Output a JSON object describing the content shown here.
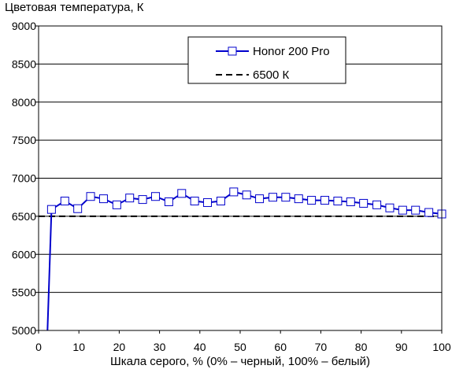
{
  "chart_data": {
    "type": "line",
    "title": "Цветовая температура, К",
    "xlabel": "Шкала серого, % (0% – черный, 100% – белый)",
    "ylabel": "",
    "xlim": [
      0,
      100
    ],
    "ylim": [
      5000,
      9000
    ],
    "x_ticks": [
      "0",
      "10",
      "20",
      "30",
      "40",
      "50",
      "60",
      "70",
      "80",
      "90",
      "100"
    ],
    "y_ticks": [
      "5000",
      "5500",
      "6000",
      "6500",
      "7000",
      "7500",
      "8000",
      "8500",
      "9000"
    ],
    "grid": true,
    "legend_position": "top-right",
    "series": [
      {
        "name": "Honor 200 Pro",
        "style": "solid-with-square-markers",
        "color": "#0000cc",
        "x": [
          2.2,
          3.2,
          6.5,
          9.7,
          12.9,
          16.1,
          19.4,
          22.6,
          25.8,
          29.0,
          32.3,
          35.5,
          38.7,
          41.9,
          45.2,
          48.4,
          51.6,
          54.8,
          58.1,
          61.3,
          64.5,
          67.7,
          71.0,
          74.2,
          77.4,
          80.6,
          83.9,
          87.1,
          90.3,
          93.5,
          96.8,
          100
        ],
        "values": [
          5000,
          6590,
          6700,
          6600,
          6760,
          6730,
          6650,
          6740,
          6720,
          6760,
          6690,
          6800,
          6700,
          6680,
          6700,
          6820,
          6780,
          6730,
          6750,
          6750,
          6730,
          6710,
          6710,
          6700,
          6690,
          6670,
          6650,
          6610,
          6580,
          6580,
          6550,
          6530
        ],
        "marker_start_index": 1
      },
      {
        "name": "6500 К",
        "style": "dashed",
        "color": "#000000",
        "x": [
          0,
          100
        ],
        "values": [
          6500,
          6500
        ]
      }
    ]
  }
}
